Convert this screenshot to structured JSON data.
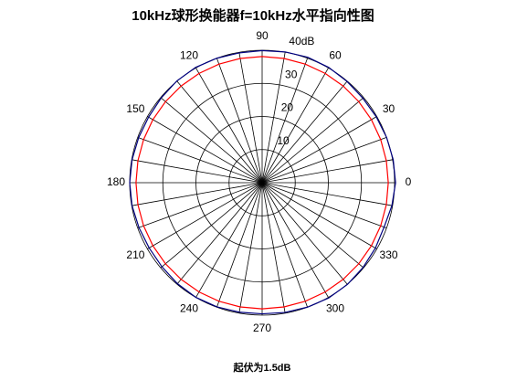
{
  "chart_data": {
    "type": "polar",
    "title": "10kHz球形换能器f=10kHz水平指向性图",
    "footer": "起伏为1.5dB",
    "theta": [
      0,
      10,
      20,
      30,
      40,
      50,
      60,
      70,
      80,
      90,
      100,
      110,
      120,
      130,
      140,
      150,
      160,
      170,
      180,
      190,
      200,
      210,
      220,
      230,
      240,
      250,
      260,
      270,
      280,
      290,
      300,
      310,
      320,
      330,
      340,
      350
    ],
    "series": [
      {
        "color": "#000080",
        "values": [
          40.3,
          40.2,
          40.0,
          39.8,
          39.7,
          39.9,
          40.2,
          40.3,
          40.1,
          39.9,
          39.8,
          40.0,
          40.2,
          40.1,
          39.8,
          39.6,
          39.7,
          39.9,
          40.0,
          39.9,
          39.6,
          39.4,
          39.5,
          39.8,
          40.0,
          39.9,
          39.7,
          39.6,
          39.8,
          40.0,
          40.2,
          40.1,
          39.8,
          39.5,
          39.2,
          39.8
        ]
      },
      {
        "color": "#ff0000",
        "values": [
          38.1,
          38.1,
          38.1,
          38.1,
          38.1,
          38.1,
          38.1,
          38.1,
          38.1,
          38.1,
          38.1,
          38.1,
          38.1,
          38.1,
          38.1,
          38.1,
          38.1,
          38.1,
          38.1,
          38.1,
          38.1,
          38.1,
          38.1,
          38.1,
          38.1,
          38.1,
          38.1,
          38.1,
          38.1,
          38.1,
          38.1,
          38.1,
          38.1,
          38.1,
          38.1,
          38.1
        ]
      }
    ],
    "rlim": [
      0,
      40
    ],
    "rticks": [
      10,
      20,
      30,
      {
        "value": 40,
        "label": "40dB"
      }
    ],
    "thetaticks": [
      0,
      30,
      60,
      90,
      120,
      150,
      180,
      210,
      240,
      270,
      300,
      330
    ]
  }
}
